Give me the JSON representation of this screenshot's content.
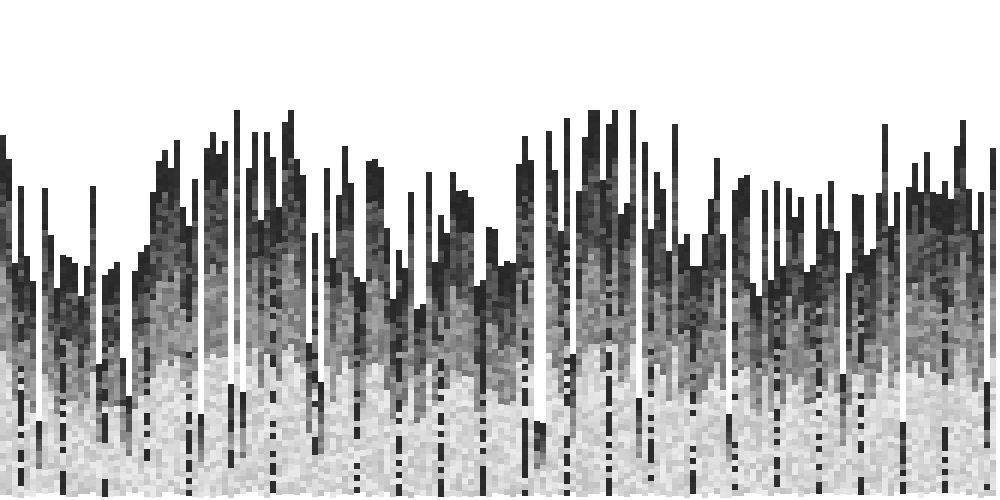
{
  "canvas": {
    "background": "#ffffff",
    "description_colors": {
      "dark": "#262626",
      "mid_dark": "#4a4a4a",
      "mid": "#7a7a7a",
      "light": "#b5b5b5",
      "lighter": "#d8d8d8",
      "lightest": "#ececec"
    }
  },
  "columns_seed": 1337,
  "column_count": 166
}
